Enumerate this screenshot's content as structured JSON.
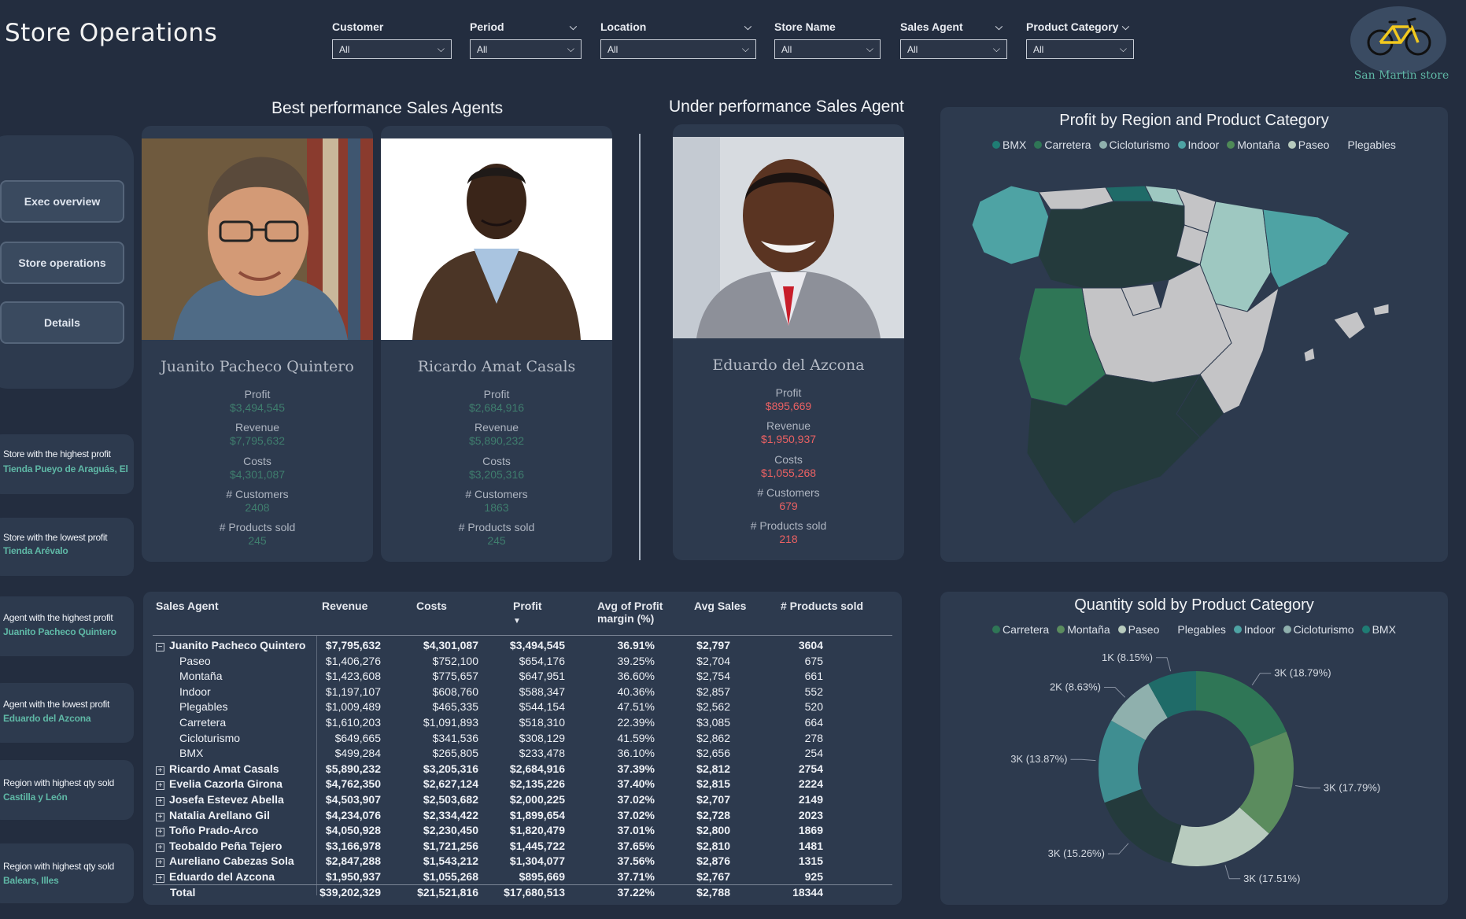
{
  "page": {
    "title": "Store Operations"
  },
  "filters": [
    {
      "label": "Customer",
      "value": "All"
    },
    {
      "label": "Period",
      "value": "All"
    },
    {
      "label": "Location",
      "value": "All"
    },
    {
      "label": "Store Name",
      "value": "All"
    },
    {
      "label": "Sales Agent",
      "value": "All"
    },
    {
      "label": "Product Category",
      "value": "All"
    }
  ],
  "logo": {
    "text": "San Martin store",
    "icon": "bicycle-icon"
  },
  "headings": {
    "best": "Best performance Sales Agents",
    "under": "Under performance Sales Agent"
  },
  "nav": [
    {
      "label": "Exec overview"
    },
    {
      "label": "Store operations"
    },
    {
      "label": "Details"
    }
  ],
  "kpis": [
    {
      "label": "Store with the highest profit",
      "value": "Tienda Pueyo de Araguás, El"
    },
    {
      "label": "Store with the lowest profit",
      "value": "Tienda Arévalo"
    },
    {
      "label": "Agent with the highest profit",
      "value": "Juanito Pacheco Quintero"
    },
    {
      "label": "Agent with the lowest profit",
      "value": "Eduardo del Azcona"
    },
    {
      "label": "Region with highest qty sold",
      "value": "Castilla y León"
    },
    {
      "label": "Region with highest qty sold",
      "value": "Balears, Illes"
    }
  ],
  "metric_labels": {
    "profit": "Profit",
    "revenue": "Revenue",
    "costs": "Costs",
    "customers": "# Customers",
    "products": "# Products sold"
  },
  "agents": [
    {
      "name": "Juanito Pacheco Quintero",
      "profit": "$3,494,545",
      "revenue": "$7,795,632",
      "costs": "$4,301,087",
      "customers": "2408",
      "products": "245"
    },
    {
      "name": "Ricardo Amat Casals",
      "profit": "$2,684,916",
      "revenue": "$5,890,232",
      "costs": "$3,205,316",
      "customers": "1863",
      "products": "245"
    },
    {
      "name": "Eduardo del Azcona",
      "profit": "$895,669",
      "revenue": "$1,950,937",
      "costs": "$1,055,268",
      "customers": "679",
      "products": "218"
    }
  ],
  "map": {
    "title": "Profit by Region and Product Category",
    "legend": [
      {
        "name": "BMX",
        "color": "#1f7c74"
      },
      {
        "name": "Carretera",
        "color": "#2f7656"
      },
      {
        "name": "Cicloturismo",
        "color": "#8fb0ad"
      },
      {
        "name": "Indoor",
        "color": "#4ea3a4"
      },
      {
        "name": "Montaña",
        "color": "#4f8a57"
      },
      {
        "name": "Paseo",
        "color": "#b8cbbe"
      },
      {
        "name": "Plegables",
        "color": "#2d3a4e"
      }
    ]
  },
  "donut": {
    "title": "Quantity sold by Product Category",
    "legend": [
      {
        "name": "Carretera",
        "color": "#2f7656"
      },
      {
        "name": "Montaña",
        "color": "#5b8c5e"
      },
      {
        "name": "Paseo",
        "color": "#b8cbbe"
      },
      {
        "name": "Plegables",
        "color": "#2d3a4e"
      },
      {
        "name": "Indoor",
        "color": "#4ea3a4"
      },
      {
        "name": "Cicloturismo",
        "color": "#8fb0ad"
      },
      {
        "name": "BMX",
        "color": "#1f7c74"
      }
    ]
  },
  "chart_data": {
    "type": "pie",
    "title": "Quantity sold by Product Category",
    "categories": [
      "Carretera",
      "Montaña",
      "Paseo",
      "Plegables",
      "Indoor",
      "Cicloturismo",
      "BMX"
    ],
    "values": [
      18.79,
      17.79,
      17.51,
      15.26,
      13.87,
      8.63,
      8.15
    ],
    "labels": [
      "3K (18.79%)",
      "3K (17.79%)",
      "3K (17.51%)",
      "3K (15.26%)",
      "3K (13.87%)",
      "2K (8.63%)",
      "1K (8.15%)"
    ],
    "colors": [
      "#2f7656",
      "#5b8c5e",
      "#b8cbbe",
      "#243a3c",
      "#3f8e91",
      "#8fb0ad",
      "#1f6b68"
    ],
    "legend": "top"
  },
  "table": {
    "headers": [
      "Sales Agent",
      "Revenue",
      "Costs",
      "Profit",
      "Avg of Profit margin (%)",
      "Avg Sales",
      "# Products sold"
    ],
    "rows": [
      {
        "type": "parent",
        "expand": "⊟",
        "name": "Juanito Pacheco Quintero",
        "revenue": "$7,795,632",
        "costs": "$4,301,087",
        "profit": "$3,494,545",
        "margin": "36.91%",
        "avg": "$2,797",
        "qty": "3604"
      },
      {
        "type": "child",
        "name": "Paseo",
        "revenue": "$1,406,276",
        "costs": "$752,100",
        "profit": "$654,176",
        "margin": "39.25%",
        "avg": "$2,704",
        "qty": "675"
      },
      {
        "type": "child",
        "name": "Montaña",
        "revenue": "$1,423,608",
        "costs": "$775,657",
        "profit": "$647,951",
        "margin": "36.60%",
        "avg": "$2,754",
        "qty": "661"
      },
      {
        "type": "child",
        "name": "Indoor",
        "revenue": "$1,197,107",
        "costs": "$608,760",
        "profit": "$588,347",
        "margin": "40.36%",
        "avg": "$2,857",
        "qty": "552"
      },
      {
        "type": "child",
        "name": "Plegables",
        "revenue": "$1,009,489",
        "costs": "$465,335",
        "profit": "$544,154",
        "margin": "47.51%",
        "avg": "$2,562",
        "qty": "520"
      },
      {
        "type": "child",
        "name": "Carretera",
        "revenue": "$1,610,203",
        "costs": "$1,091,893",
        "profit": "$518,310",
        "margin": "22.39%",
        "avg": "$3,085",
        "qty": "664"
      },
      {
        "type": "child",
        "name": "Cicloturismo",
        "revenue": "$649,665",
        "costs": "$341,536",
        "profit": "$308,129",
        "margin": "41.59%",
        "avg": "$2,862",
        "qty": "278"
      },
      {
        "type": "child",
        "name": "BMX",
        "revenue": "$499,284",
        "costs": "$265,805",
        "profit": "$233,478",
        "margin": "36.10%",
        "avg": "$2,656",
        "qty": "254"
      },
      {
        "type": "parent",
        "expand": "⊞",
        "name": "Ricardo Amat Casals",
        "revenue": "$5,890,232",
        "costs": "$3,205,316",
        "profit": "$2,684,916",
        "margin": "37.39%",
        "avg": "$2,812",
        "qty": "2754"
      },
      {
        "type": "parent",
        "expand": "⊞",
        "name": "Evelia Cazorla Girona",
        "revenue": "$4,762,350",
        "costs": "$2,627,124",
        "profit": "$2,135,226",
        "margin": "37.40%",
        "avg": "$2,815",
        "qty": "2224"
      },
      {
        "type": "parent",
        "expand": "⊞",
        "name": "Josefa Estevez Abella",
        "revenue": "$4,503,907",
        "costs": "$2,503,682",
        "profit": "$2,000,225",
        "margin": "37.02%",
        "avg": "$2,707",
        "qty": "2149"
      },
      {
        "type": "parent",
        "expand": "⊞",
        "name": "Natalia Arellano Gil",
        "revenue": "$4,234,076",
        "costs": "$2,334,422",
        "profit": "$1,899,654",
        "margin": "37.02%",
        "avg": "$2,728",
        "qty": "2023"
      },
      {
        "type": "parent",
        "expand": "⊞",
        "name": "Toño Prado-Arco",
        "revenue": "$4,050,928",
        "costs": "$2,230,450",
        "profit": "$1,820,479",
        "margin": "37.01%",
        "avg": "$2,800",
        "qty": "1869"
      },
      {
        "type": "parent",
        "expand": "⊞",
        "name": "Teobaldo Peña Tejero",
        "revenue": "$3,166,978",
        "costs": "$1,721,256",
        "profit": "$1,445,722",
        "margin": "37.65%",
        "avg": "$2,810",
        "qty": "1481"
      },
      {
        "type": "parent",
        "expand": "⊞",
        "name": "Aureliano Cabezas Sola",
        "revenue": "$2,847,288",
        "costs": "$1,543,212",
        "profit": "$1,304,077",
        "margin": "37.56%",
        "avg": "$2,876",
        "qty": "1315"
      },
      {
        "type": "parent",
        "expand": "⊞",
        "name": "Eduardo del Azcona",
        "revenue": "$1,950,937",
        "costs": "$1,055,268",
        "profit": "$895,669",
        "margin": "37.71%",
        "avg": "$2,767",
        "qty": "925"
      },
      {
        "type": "total",
        "name": "Total",
        "revenue": "$39,202,329",
        "costs": "$21,521,816",
        "profit": "$17,680,513",
        "margin": "37.22%",
        "avg": "$2,788",
        "qty": "18344"
      }
    ]
  }
}
